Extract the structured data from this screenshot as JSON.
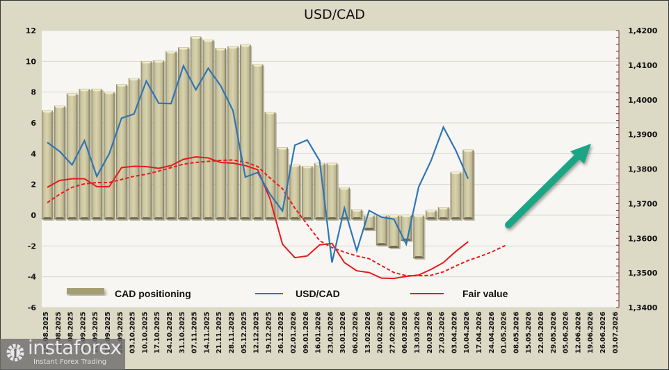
{
  "chart_data": {
    "type": "bar",
    "title": "USD/CAD",
    "categories": [
      "15.08.2025",
      "22.08.2025",
      "29.08.2025",
      "05.09.2025",
      "12.09.2025",
      "19.09.2025",
      "26.09.2025",
      "03.10.2025",
      "10.10.2025",
      "17.10.2025",
      "24.10.2025",
      "31.10.2025",
      "07.11.2025",
      "14.11.2025",
      "21.11.2025",
      "28.11.2025",
      "05.12.2025",
      "12.12.2025",
      "19.12.2025",
      "26.12.2025",
      "02.01.2026",
      "09.01.2026",
      "16.01.2026",
      "23.01.2026",
      "30.01.2026",
      "06.02.2026",
      "13.02.2026",
      "20.02.2026",
      "27.02.2026",
      "06.03.2026",
      "13.03.2026",
      "20.03.2026",
      "27.03.2026",
      "03.04.2026",
      "10.04.2026",
      "17.04.2026",
      "24.04.2026",
      "01.05.2026",
      "08.05.2026",
      "15.05.2026",
      "22.05.2026",
      "29.05.2026",
      "05.06.2026",
      "12.06.2026",
      "19.06.2026",
      "26.06.2026",
      "03.07.2026"
    ],
    "left_axis": {
      "ylim": [
        -6,
        12
      ],
      "ticks": [
        "12",
        "10",
        "8",
        "6",
        "4",
        "2",
        "0",
        "-2",
        "-4",
        "-6"
      ],
      "tick_values": [
        12,
        10,
        8,
        6,
        4,
        2,
        0,
        -2,
        -4,
        -6
      ]
    },
    "right_axis": {
      "ylim": [
        1.34,
        1.42
      ],
      "ticks": [
        "1,4200",
        "1,4100",
        "1,4000",
        "1,3900",
        "1,3800",
        "1,3700",
        "1,3600",
        "1,3500",
        "1,3400"
      ],
      "tick_values": [
        1.42,
        1.41,
        1.4,
        1.39,
        1.38,
        1.37,
        1.36,
        1.35,
        1.34
      ]
    },
    "grid": true,
    "series": [
      {
        "name": "CAD positioning",
        "type": "bar",
        "axis": "left",
        "color": "#c9c29a",
        "values": [
          6.8,
          7.1,
          7.9,
          8.2,
          8.2,
          8.0,
          8.5,
          8.9,
          10.0,
          10.05,
          10.65,
          10.9,
          11.6,
          11.4,
          10.85,
          10.97,
          11.08,
          9.8,
          6.7,
          4.4,
          3.27,
          3.19,
          3.38,
          3.38,
          1.8,
          0.37,
          -0.95,
          -1.95,
          -2.12,
          -1.65,
          -2.8,
          0.32,
          0.52,
          2.8,
          4.25
        ]
      },
      {
        "name": "USD/CAD",
        "type": "line",
        "axis": "right",
        "color": "#2e75b6",
        "values": [
          1.3877,
          1.3851,
          1.3812,
          1.3882,
          1.3779,
          1.3844,
          1.3947,
          1.3959,
          1.4054,
          1.399,
          1.3989,
          1.4098,
          1.4029,
          1.4091,
          1.4041,
          1.3969,
          1.3777,
          1.379,
          1.3727,
          1.3679,
          1.3869,
          1.3884,
          1.3824,
          1.353,
          1.3687,
          1.3564,
          1.368,
          1.3661,
          1.3655,
          1.3583,
          1.3748,
          1.3824,
          1.3921,
          1.3854,
          1.3772
        ]
      },
      {
        "name": "Fair value",
        "type": "line",
        "axis": "right",
        "color": "#e8191c",
        "values": [
          1.3747,
          1.3767,
          1.3772,
          1.3772,
          1.3749,
          1.3749,
          1.3804,
          1.3808,
          1.3807,
          1.3802,
          1.381,
          1.3828,
          1.3835,
          1.3832,
          1.3819,
          1.3817,
          1.381,
          1.3798,
          1.3713,
          1.3583,
          1.3544,
          1.3549,
          1.3581,
          1.3585,
          1.353,
          1.3506,
          1.3501,
          1.3485,
          1.3484,
          1.349,
          1.3494,
          1.351,
          1.353,
          1.3562,
          1.359
        ]
      },
      {
        "name": "Fair value trend",
        "type": "line",
        "style": "dashed",
        "axis": "right",
        "color": "#e8191c",
        "in_legend": false,
        "values": [
          1.3703,
          1.3727,
          1.3747,
          1.3757,
          1.3761,
          1.3761,
          1.377,
          1.3779,
          1.3785,
          1.3794,
          1.3804,
          1.3814,
          1.3819,
          1.3822,
          1.3825,
          1.3826,
          1.382,
          1.3807,
          1.3774,
          1.3743,
          1.3687,
          1.364,
          1.3593,
          1.3573,
          1.356,
          1.3549,
          1.3541,
          1.3521,
          1.3501,
          1.3492,
          1.3492,
          1.3493,
          1.3503,
          1.352,
          1.3536,
          1.3548,
          1.3562,
          1.3579
        ]
      }
    ],
    "legend": {
      "placement": "bottom-inside",
      "entries": [
        "CAD positioning",
        "USD/CAD",
        "Fair value"
      ]
    },
    "annotations": [
      {
        "type": "arrow",
        "direction": "up-right",
        "color": "#1aa585",
        "meaning": "expected USD/CAD rise"
      }
    ]
  },
  "watermark": {
    "brand": "instaforex",
    "tagline": "Instant Forex Trading"
  }
}
